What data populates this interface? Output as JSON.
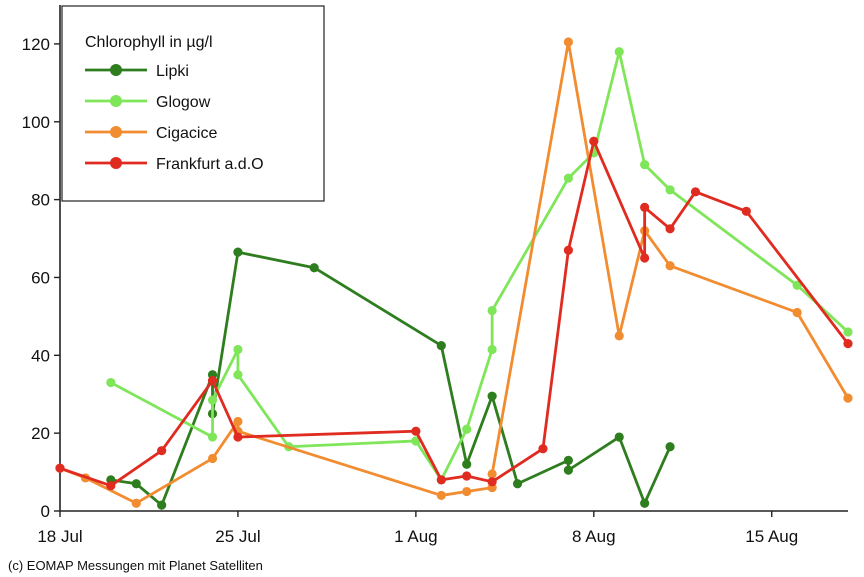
{
  "chart_data": {
    "type": "line",
    "legend_title": "Chlorophyll in µg/l",
    "legend_position": "top-left",
    "credit": "(c) EOMAP Messungen mit Planet Satelliten",
    "grid": false,
    "x_start": "2019-07-18",
    "x_end": "2019-08-18",
    "xlim": [
      "2019-07-18",
      "2019-08-18"
    ],
    "ylim": [
      0,
      130
    ],
    "x_ticks": [
      {
        "date": "2019-07-18",
        "label": "18 Jul"
      },
      {
        "date": "2019-07-25",
        "label": "25 Jul"
      },
      {
        "date": "2019-08-01",
        "label": "1 Aug"
      },
      {
        "date": "2019-08-08",
        "label": "8 Aug"
      },
      {
        "date": "2019-08-15",
        "label": "15 Aug"
      }
    ],
    "y_ticks": [
      0,
      20,
      40,
      60,
      80,
      100,
      120
    ],
    "series": [
      {
        "name": "Lipki",
        "color": "#2e7d1e",
        "points": [
          {
            "x": "2019-07-20 00:00",
            "y": 8
          },
          {
            "x": "2019-07-21 00:00",
            "y": 7
          },
          {
            "x": "2019-07-22 00:00",
            "y": 1.5
          },
          {
            "x": "2019-07-24 00:00",
            "y": 35
          },
          {
            "x": "2019-07-24 00:00",
            "y": 25
          },
          {
            "x": "2019-07-25 00:00",
            "y": 66.5
          },
          {
            "x": "2019-07-28 00:00",
            "y": 62.5
          },
          {
            "x": "2019-08-02 00:00",
            "y": 42.5
          },
          {
            "x": "2019-08-03 00:00",
            "y": 12
          },
          {
            "x": "2019-08-04 00:00",
            "y": 29.5
          },
          {
            "x": "2019-08-05 00:00",
            "y": 7
          },
          {
            "x": "2019-08-07 00:00",
            "y": 13
          },
          {
            "x": "2019-08-07 00:00",
            "y": 10.5
          },
          {
            "x": "2019-08-09 00:00",
            "y": 19
          },
          {
            "x": "2019-08-10 00:00",
            "y": 2
          },
          {
            "x": "2019-08-11 00:00",
            "y": 16.5
          }
        ]
      },
      {
        "name": "Glogow",
        "color": "#7fe65a",
        "points": [
          {
            "x": "2019-07-20 00:00",
            "y": 33
          },
          {
            "x": "2019-07-24 00:00",
            "y": 19
          },
          {
            "x": "2019-07-24 00:00",
            "y": 28.5
          },
          {
            "x": "2019-07-25 00:00",
            "y": 41.5
          },
          {
            "x": "2019-07-25 00:00",
            "y": 35
          },
          {
            "x": "2019-07-27 00:00",
            "y": 16.5
          },
          {
            "x": "2019-08-01 00:00",
            "y": 18
          },
          {
            "x": "2019-08-02 00:00",
            "y": 8
          },
          {
            "x": "2019-08-03 00:00",
            "y": 21
          },
          {
            "x": "2019-08-04 00:00",
            "y": 41.5
          },
          {
            "x": "2019-08-04 00:00",
            "y": 51.5
          },
          {
            "x": "2019-08-07 00:00",
            "y": 85.5
          },
          {
            "x": "2019-08-08 00:00",
            "y": 92
          },
          {
            "x": "2019-08-09 00:00",
            "y": 118
          },
          {
            "x": "2019-08-10 00:00",
            "y": 89
          },
          {
            "x": "2019-08-11 00:00",
            "y": 82.5
          },
          {
            "x": "2019-08-16 00:00",
            "y": 58
          },
          {
            "x": "2019-08-18 00:00",
            "y": 46
          }
        ]
      },
      {
        "name": "Cigacice",
        "color": "#f28c30",
        "points": [
          {
            "x": "2019-07-18 00:00",
            "y": 11
          },
          {
            "x": "2019-07-19 00:00",
            "y": 8.5
          },
          {
            "x": "2019-07-21 00:00",
            "y": 2
          },
          {
            "x": "2019-07-24 00:00",
            "y": 13.5
          },
          {
            "x": "2019-07-25 00:00",
            "y": 23
          },
          {
            "x": "2019-07-25 00:00",
            "y": 20.5
          },
          {
            "x": "2019-08-02 00:00",
            "y": 4
          },
          {
            "x": "2019-08-03 00:00",
            "y": 5
          },
          {
            "x": "2019-08-04 00:00",
            "y": 6
          },
          {
            "x": "2019-08-04 00:00",
            "y": 9.5
          },
          {
            "x": "2019-08-07 00:00",
            "y": 120.5
          },
          {
            "x": "2019-08-09 00:00",
            "y": 45
          },
          {
            "x": "2019-08-10 00:00",
            "y": 72
          },
          {
            "x": "2019-08-11 00:00",
            "y": 63
          },
          {
            "x": "2019-08-16 00:00",
            "y": 51
          },
          {
            "x": "2019-08-18 00:00",
            "y": 29
          }
        ]
      },
      {
        "name": "Frankfurt a.d.O",
        "color": "#e02b20",
        "points": [
          {
            "x": "2019-07-18 00:00",
            "y": 11
          },
          {
            "x": "2019-07-20 00:00",
            "y": 6.5
          },
          {
            "x": "2019-07-22 00:00",
            "y": 15.5
          },
          {
            "x": "2019-07-24 00:00",
            "y": 33.5
          },
          {
            "x": "2019-07-25 00:00",
            "y": 19
          },
          {
            "x": "2019-08-01 00:00",
            "y": 20.5
          },
          {
            "x": "2019-08-02 00:00",
            "y": 8
          },
          {
            "x": "2019-08-03 00:00",
            "y": 9
          },
          {
            "x": "2019-08-04 00:00",
            "y": 7.5
          },
          {
            "x": "2019-08-06 00:00",
            "y": 16
          },
          {
            "x": "2019-08-07 00:00",
            "y": 67
          },
          {
            "x": "2019-08-08 00:00",
            "y": 95
          },
          {
            "x": "2019-08-10 00:00",
            "y": 65
          },
          {
            "x": "2019-08-10 00:00",
            "y": 78
          },
          {
            "x": "2019-08-11 00:00",
            "y": 72.5
          },
          {
            "x": "2019-08-12 00:00",
            "y": 82
          },
          {
            "x": "2019-08-14 00:00",
            "y": 77
          },
          {
            "x": "2019-08-18 00:00",
            "y": 43
          }
        ]
      }
    ]
  }
}
